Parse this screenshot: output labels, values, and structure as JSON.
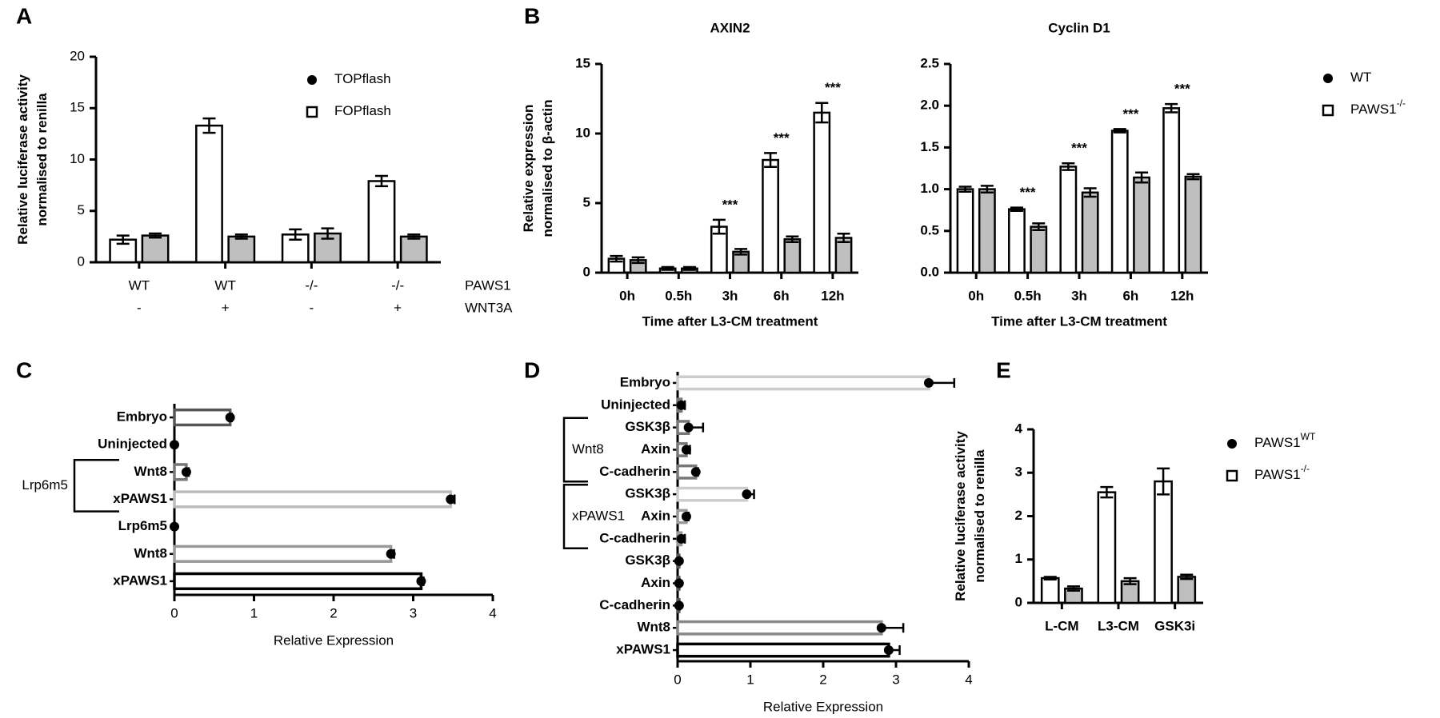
{
  "chart_data": [
    {
      "type": "bar",
      "panel": "A",
      "ylabel": "Relative luciferase activity normalised to renilla",
      "categories": [
        "WT",
        "WT",
        "-/-",
        "-/-"
      ],
      "categories2": [
        "-",
        "+",
        "-",
        "+"
      ],
      "row_labels": [
        "PAWS1",
        "WNT3A"
      ],
      "series": [
        {
          "name": "TOPflash",
          "marker": "circle",
          "color": "#ffffff",
          "values": [
            2.2,
            13.3,
            2.7,
            7.9
          ],
          "errors": [
            0.4,
            0.7,
            0.5,
            0.5
          ]
        },
        {
          "name": "FOPflash",
          "marker": "square",
          "color": "#bfbfbf",
          "values": [
            2.6,
            2.5,
            2.8,
            2.5
          ],
          "errors": [
            0.2,
            0.2,
            0.5,
            0.2
          ]
        }
      ],
      "ylim": [
        0,
        20
      ],
      "yticks": [
        0,
        5,
        10,
        15,
        20
      ]
    },
    {
      "type": "bar",
      "panel": "B",
      "title": "AXIN2",
      "ylabel": "Relative expression normalised to β-actin",
      "xlabel": "Time after L3-CM treatment",
      "categories": [
        "0h",
        "0.5h",
        "3h",
        "6h",
        "12h"
      ],
      "annotations": [
        null,
        null,
        "***",
        "***",
        "***"
      ],
      "series": [
        {
          "color": "#ffffff",
          "values": [
            1.0,
            0.3,
            3.3,
            8.1,
            11.5
          ],
          "errors": [
            0.2,
            0.1,
            0.5,
            0.5,
            0.7
          ]
        },
        {
          "color": "#bfbfbf",
          "values": [
            0.9,
            0.3,
            1.5,
            2.4,
            2.5
          ],
          "errors": [
            0.2,
            0.1,
            0.2,
            0.2,
            0.3
          ]
        }
      ],
      "ylim": [
        0,
        15
      ],
      "yticks": [
        0,
        5,
        10,
        15
      ]
    },
    {
      "type": "bar",
      "title": "Cyclin D1",
      "xlabel": "Time after L3-CM treatment",
      "categories": [
        "0h",
        "0.5h",
        "3h",
        "6h",
        "12h"
      ],
      "annotations": [
        null,
        "***",
        "***",
        "***",
        "***"
      ],
      "series": [
        {
          "name": "WT",
          "marker": "circle",
          "color": "#ffffff",
          "values": [
            1.0,
            0.76,
            1.27,
            1.7,
            1.97
          ],
          "errors": [
            0.03,
            0.02,
            0.04,
            0.02,
            0.05
          ]
        },
        {
          "name": "PAWS1",
          "name_sup": "-/-",
          "marker": "square",
          "color": "#bfbfbf",
          "values": [
            1.0,
            0.55,
            0.96,
            1.14,
            1.15
          ],
          "errors": [
            0.04,
            0.04,
            0.05,
            0.06,
            0.03
          ]
        }
      ],
      "ylim": [
        0,
        2.5
      ],
      "yticks": [
        {
          "value": 0,
          "label": "0.0"
        },
        0.5,
        {
          "value": 1,
          "label": "1.0"
        },
        1.5,
        {
          "value": 2,
          "label": "2.0"
        },
        2.5
      ]
    },
    {
      "type": "hbar",
      "panel": "C",
      "xlabel": "Relative Expression",
      "categories": [
        "Embryo",
        "Uninjected",
        "Wnt8",
        "xPAWS1",
        "Lrp6m5",
        "Wnt8",
        "xPAWS1"
      ],
      "values": [
        0.7,
        0.0,
        0.15,
        3.47,
        0.0,
        2.72,
        3.1
      ],
      "errors": [
        0.02,
        0.0,
        0.03,
        0.05,
        0.0,
        0.04,
        0.03
      ],
      "colors": [
        "#555555",
        "#aaaaaa",
        "#777777",
        "#bbbbbb",
        "#000000",
        "#999999",
        "#000000"
      ],
      "groups": [
        {
          "label": "Lrp6m5",
          "span": [
            2,
            3
          ]
        }
      ],
      "xlim": [
        0,
        4
      ],
      "xticks": [
        0,
        1,
        2,
        3,
        4
      ]
    },
    {
      "type": "hbar",
      "panel": "D",
      "xlabel": "Relative Expression",
      "categories": [
        "Embryo",
        "Uninjected",
        "GSK3β",
        "Axin",
        "C-cadherin",
        "GSK3β",
        "Axin",
        "C-cadherin",
        "GSK3β",
        "Axin",
        "C-cadherin",
        "Wnt8",
        "xPAWS1"
      ],
      "values": [
        3.45,
        0.05,
        0.15,
        0.12,
        0.25,
        0.95,
        0.12,
        0.05,
        0.02,
        0.02,
        0.02,
        2.8,
        2.9
      ],
      "errors": [
        0.35,
        0.05,
        0.2,
        0.05,
        0.03,
        0.1,
        0.03,
        0.05,
        0.01,
        0.01,
        0.01,
        0.3,
        0.15
      ],
      "colors": [
        "#cccccc",
        "#777777",
        "#777777",
        "#777777",
        "#777777",
        "#cccccc",
        "#999999",
        "#999999",
        "#555555",
        "#555555",
        "#555555",
        "#888888",
        "#000000"
      ],
      "groups": [
        {
          "label": "Wnt8",
          "span": [
            2,
            4
          ]
        },
        {
          "label": "xPAWS1",
          "span": [
            5,
            7
          ]
        }
      ],
      "xlim": [
        0,
        4
      ],
      "xticks": [
        0,
        1,
        2,
        3,
        4
      ]
    },
    {
      "type": "bar",
      "panel": "E",
      "ylabel": "Relative luciferase activity normalised to renilla",
      "categories": [
        "L-CM",
        "L3-CM",
        "GSK3i"
      ],
      "series": [
        {
          "name": "PAWS1",
          "name_sup": "WT",
          "marker": "circle",
          "color": "#ffffff",
          "values": [
            0.57,
            2.55,
            2.8
          ],
          "errors": [
            0.03,
            0.12,
            0.3
          ]
        },
        {
          "name": "PAWS1",
          "name_sup": "-/-",
          "marker": "square",
          "color": "#bfbfbf",
          "values": [
            0.33,
            0.5,
            0.6
          ],
          "errors": [
            0.05,
            0.07,
            0.05
          ]
        }
      ],
      "ylim": [
        0,
        4
      ],
      "yticks": [
        0,
        1,
        2,
        3,
        4
      ]
    }
  ]
}
